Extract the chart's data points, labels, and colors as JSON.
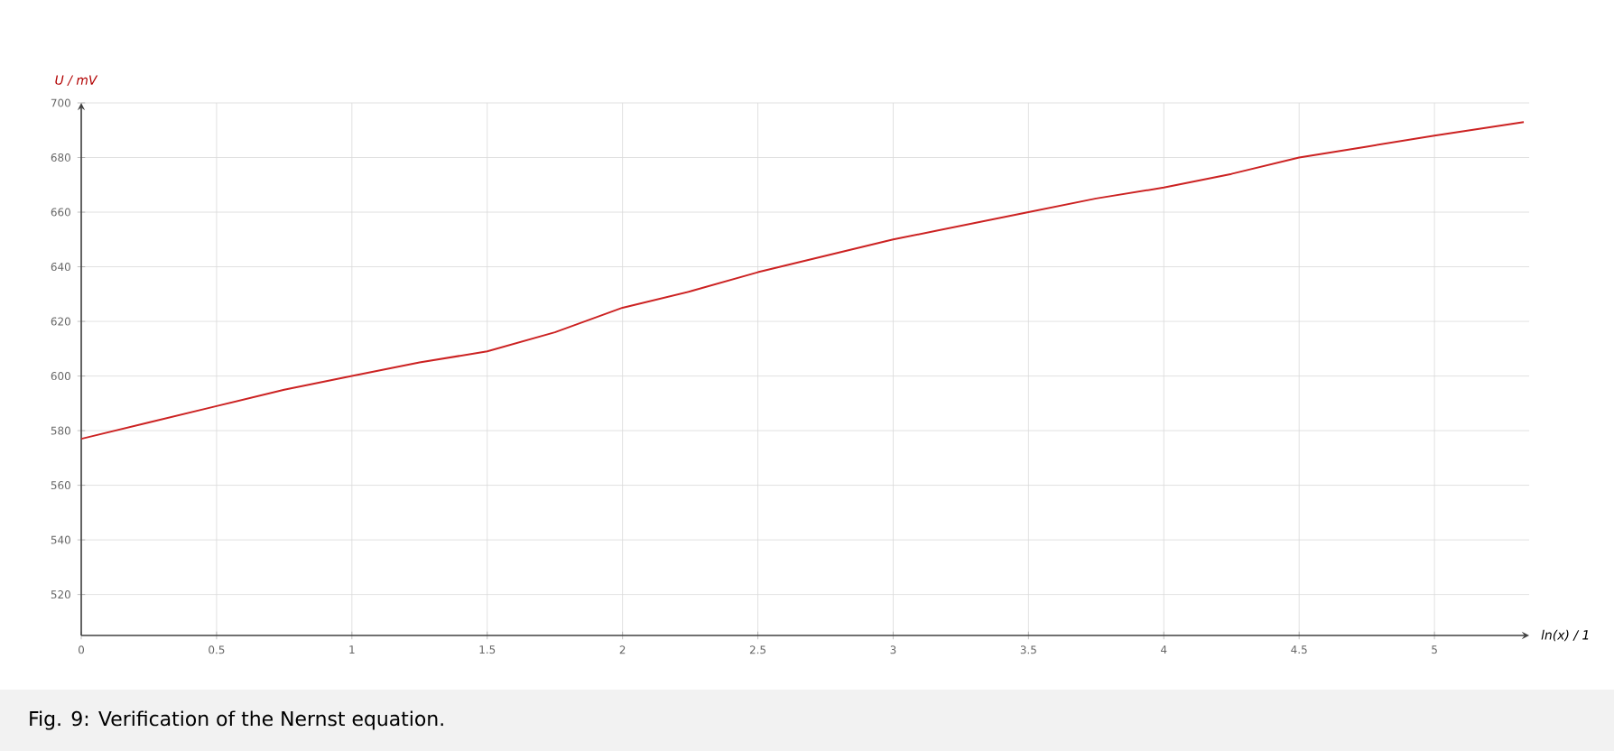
{
  "chart_data": {
    "type": "line",
    "xlabel": "ln(x) / 1",
    "ylabel": "U / mV",
    "annotations": [
      "Fig. 9: Verification of the Nernst equation."
    ],
    "x": [
      0,
      0.25,
      0.5,
      0.75,
      1,
      1.25,
      1.5,
      1.75,
      2,
      2.25,
      2.5,
      2.75,
      3,
      3.25,
      3.5,
      3.75,
      4,
      4.25,
      4.5,
      4.75,
      5,
      5.33
    ],
    "series": [
      {
        "color": "#cc2222",
        "values": [
          577,
          583,
          589,
          595,
          600,
          605,
          609,
          616,
          625,
          631,
          638,
          644,
          650,
          655,
          660,
          665,
          669,
          674,
          680,
          684,
          688,
          693
        ]
      }
    ],
    "xlim": [
      0,
      5.35
    ],
    "ylim": [
      505,
      700
    ],
    "xticks": [
      0,
      0.5,
      1,
      1.5,
      2,
      2.5,
      3,
      3.5,
      4,
      4.5,
      5
    ],
    "yticks": [
      520,
      540,
      560,
      580,
      600,
      620,
      640,
      660,
      680,
      700
    ],
    "grid": true,
    "marker": "none",
    "line_style": "solid"
  }
}
